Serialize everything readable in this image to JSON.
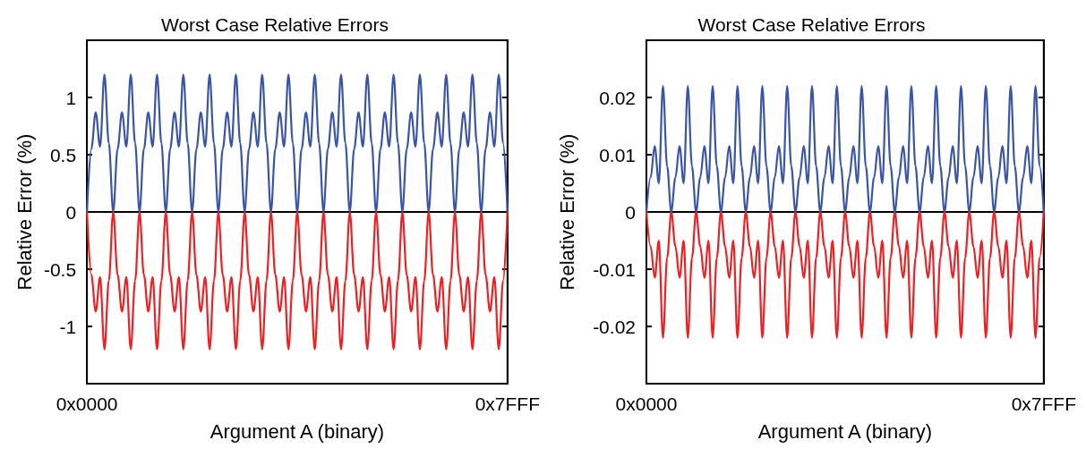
{
  "chart_data": [
    {
      "type": "line",
      "title": "Worst Case Relative Errors",
      "xlabel": "Argument A (binary)",
      "ylabel": "Relative Error (%)",
      "categories": [
        "0x0000",
        null,
        null,
        null,
        null,
        null,
        null,
        null,
        null,
        null,
        null,
        null,
        null,
        null,
        null,
        null,
        null,
        null,
        null,
        null,
        null,
        null,
        null,
        null,
        null,
        null,
        null,
        null,
        null,
        null,
        null,
        null,
        null,
        null,
        null,
        null,
        null,
        null,
        null,
        null,
        null,
        null,
        null,
        null,
        null,
        null,
        null,
        null,
        null,
        null,
        null,
        null,
        null,
        null,
        null,
        null,
        null,
        null,
        null,
        null,
        null,
        null,
        null,
        null,
        null,
        null,
        null,
        null,
        null,
        null,
        null,
        null,
        null,
        null,
        null,
        null,
        null,
        null,
        null,
        null,
        null,
        null,
        null,
        null,
        null,
        null,
        null,
        null,
        null,
        null,
        null,
        null,
        null,
        null,
        null,
        null,
        "0x7FFF"
      ],
      "series": [
        {
          "color": "#3a55a8",
          "values": [
            0,
            0.55,
            0.87,
            0.57,
            1.2,
            0.6,
            0,
            0.55,
            0.87,
            0.57,
            1.2,
            0.6,
            0,
            0.55,
            0.87,
            0.57,
            1.2,
            0.6,
            0,
            0.55,
            0.87,
            0.57,
            1.2,
            0.6,
            0,
            0.55,
            0.87,
            0.57,
            1.2,
            0.6,
            0,
            0.55,
            0.87,
            0.57,
            1.2,
            0.6,
            0,
            0.55,
            0.87,
            0.57,
            1.2,
            0.6,
            0,
            0.55,
            0.87,
            0.57,
            1.2,
            0.6,
            0,
            0.55,
            0.87,
            0.57,
            1.2,
            0.6,
            0,
            0.55,
            0.87,
            0.57,
            1.2,
            0.6,
            0,
            0.55,
            0.87,
            0.57,
            1.2,
            0.6,
            0,
            0.55,
            0.87,
            0.57,
            1.2,
            0.6,
            0,
            0.55,
            0.87,
            0.57,
            1.2,
            0.6,
            0,
            0.55,
            0.87,
            0.57,
            1.2,
            0.6,
            0,
            0.55,
            0.87,
            0.57,
            1.2,
            0.6,
            0,
            0.55,
            0.87,
            0.57,
            1.2,
            0.6,
            0
          ]
        },
        {
          "color": "#ee2024",
          "values": [
            0,
            -0.55,
            -0.87,
            -0.57,
            -1.2,
            -0.6,
            0,
            -0.55,
            -0.87,
            -0.57,
            -1.2,
            -0.6,
            0,
            -0.55,
            -0.87,
            -0.57,
            -1.2,
            -0.6,
            0,
            -0.55,
            -0.87,
            -0.57,
            -1.2,
            -0.6,
            0,
            -0.55,
            -0.87,
            -0.57,
            -1.2,
            -0.6,
            0,
            -0.55,
            -0.87,
            -0.57,
            -1.2,
            -0.6,
            0,
            -0.55,
            -0.87,
            -0.57,
            -1.2,
            -0.6,
            0,
            -0.55,
            -0.87,
            -0.57,
            -1.2,
            -0.6,
            0,
            -0.55,
            -0.87,
            -0.57,
            -1.2,
            -0.6,
            0,
            -0.55,
            -0.87,
            -0.57,
            -1.2,
            -0.6,
            0,
            -0.55,
            -0.87,
            -0.57,
            -1.2,
            -0.6,
            0,
            -0.55,
            -0.87,
            -0.57,
            -1.2,
            -0.6,
            0,
            -0.55,
            -0.87,
            -0.57,
            -1.2,
            -0.6,
            0,
            -0.55,
            -0.87,
            -0.57,
            -1.2,
            -0.6,
            0,
            -0.55,
            -0.87,
            -0.57,
            -1.2,
            -0.6,
            0,
            -0.55,
            -0.87,
            -0.57,
            -1.2,
            -0.6,
            0
          ]
        }
      ],
      "ylim": [
        -1.5,
        1.5
      ],
      "yticks": [
        -1,
        -0.5,
        0,
        0.5,
        1
      ],
      "marker": "none",
      "line_style": "solid"
    },
    {
      "type": "line",
      "title": "Worst Case Relative Errors",
      "xlabel": "Argument A (binary)",
      "ylabel": "Relative Error (%)",
      "categories": [
        "0x0000",
        null,
        null,
        null,
        null,
        null,
        null,
        null,
        null,
        null,
        null,
        null,
        null,
        null,
        null,
        null,
        null,
        null,
        null,
        null,
        null,
        null,
        null,
        null,
        null,
        null,
        null,
        null,
        null,
        null,
        null,
        null,
        null,
        null,
        null,
        null,
        null,
        null,
        null,
        null,
        null,
        null,
        null,
        null,
        null,
        null,
        null,
        null,
        null,
        null,
        null,
        null,
        null,
        null,
        null,
        null,
        null,
        null,
        null,
        null,
        null,
        null,
        null,
        null,
        null,
        null,
        null,
        null,
        null,
        null,
        null,
        null,
        null,
        null,
        null,
        null,
        null,
        null,
        null,
        null,
        null,
        null,
        null,
        null,
        null,
        null,
        null,
        null,
        null,
        null,
        null,
        null,
        null,
        null,
        null,
        null,
        "0x7FFF"
      ],
      "series": [
        {
          "color": "#3a55a8",
          "values": [
            0,
            0.006,
            0.0115,
            0.005,
            0.022,
            0.008,
            0,
            0.006,
            0.0115,
            0.005,
            0.022,
            0.008,
            0,
            0.006,
            0.0115,
            0.005,
            0.022,
            0.008,
            0,
            0.006,
            0.0115,
            0.005,
            0.022,
            0.008,
            0,
            0.006,
            0.0115,
            0.005,
            0.022,
            0.008,
            0,
            0.006,
            0.0115,
            0.005,
            0.022,
            0.008,
            0,
            0.006,
            0.0115,
            0.005,
            0.022,
            0.008,
            0,
            0.006,
            0.0115,
            0.005,
            0.022,
            0.008,
            0,
            0.006,
            0.0115,
            0.005,
            0.022,
            0.008,
            0,
            0.006,
            0.0115,
            0.005,
            0.022,
            0.008,
            0,
            0.006,
            0.0115,
            0.005,
            0.022,
            0.008,
            0,
            0.006,
            0.0115,
            0.005,
            0.022,
            0.008,
            0,
            0.006,
            0.0115,
            0.005,
            0.022,
            0.008,
            0,
            0.006,
            0.0115,
            0.005,
            0.022,
            0.008,
            0,
            0.006,
            0.0115,
            0.005,
            0.022,
            0.008,
            0,
            0.006,
            0.0115,
            0.005,
            0.022,
            0.008,
            0
          ]
        },
        {
          "color": "#ee2024",
          "values": [
            0,
            -0.006,
            -0.0115,
            -0.005,
            -0.022,
            -0.008,
            0,
            -0.006,
            -0.0115,
            -0.005,
            -0.022,
            -0.008,
            0,
            -0.006,
            -0.0115,
            -0.005,
            -0.022,
            -0.008,
            0,
            -0.006,
            -0.0115,
            -0.005,
            -0.022,
            -0.008,
            0,
            -0.006,
            -0.0115,
            -0.005,
            -0.022,
            -0.008,
            0,
            -0.006,
            -0.0115,
            -0.005,
            -0.022,
            -0.008,
            0,
            -0.006,
            -0.0115,
            -0.005,
            -0.022,
            -0.008,
            0,
            -0.006,
            -0.0115,
            -0.005,
            -0.022,
            -0.008,
            0,
            -0.006,
            -0.0115,
            -0.005,
            -0.022,
            -0.008,
            0,
            -0.006,
            -0.0115,
            -0.005,
            -0.022,
            -0.008,
            0,
            -0.006,
            -0.0115,
            -0.005,
            -0.022,
            -0.008,
            0,
            -0.006,
            -0.0115,
            -0.005,
            -0.022,
            -0.008,
            0,
            -0.006,
            -0.0115,
            -0.005,
            -0.022,
            -0.008,
            0,
            -0.006,
            -0.0115,
            -0.005,
            -0.022,
            -0.008,
            0,
            -0.006,
            -0.0115,
            -0.005,
            -0.022,
            -0.008,
            0,
            -0.006,
            -0.0115,
            -0.005,
            -0.022,
            -0.008,
            0
          ]
        }
      ],
      "ylim": [
        -0.03,
        0.03
      ],
      "yticks": [
        -0.02,
        -0.01,
        0,
        0.01,
        0.02
      ],
      "marker": "none",
      "line_style": "solid"
    }
  ]
}
